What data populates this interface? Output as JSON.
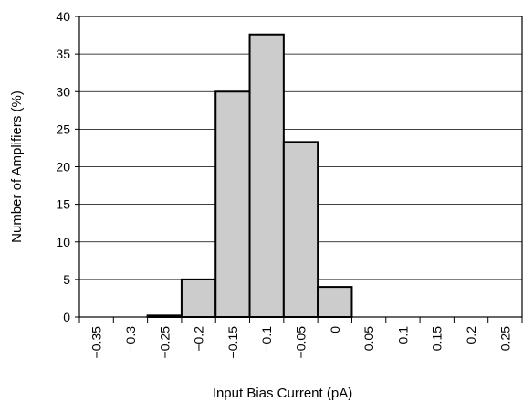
{
  "chart_data": {
    "type": "bar",
    "xlabel": "Input Bias Current (pA)",
    "ylabel": "Number of Amplifiers (%)",
    "ylim": [
      0,
      40
    ],
    "yticks": [
      0,
      5,
      10,
      15,
      20,
      25,
      30,
      35,
      40
    ],
    "xlim": [
      -0.375,
      0.275
    ],
    "xticks": [
      "−0.35",
      "−0.3",
      "−0.25",
      "−0.2",
      "−0.15",
      "−0.1",
      "−0.05",
      "0",
      "0.05",
      "0.1",
      "0.15",
      "0.2",
      "0.25"
    ],
    "xtick_values": [
      -0.35,
      -0.3,
      -0.25,
      -0.2,
      -0.15,
      -0.1,
      -0.05,
      0,
      0.05,
      0.1,
      0.15,
      0.2,
      0.25
    ],
    "bins": [
      {
        "x0": -0.375,
        "x1": -0.325,
        "value": 0
      },
      {
        "x0": -0.325,
        "x1": -0.275,
        "value": 0
      },
      {
        "x0": -0.275,
        "x1": -0.225,
        "value": 0.2
      },
      {
        "x0": -0.225,
        "x1": -0.175,
        "value": 5
      },
      {
        "x0": -0.175,
        "x1": -0.125,
        "value": 30
      },
      {
        "x0": -0.125,
        "x1": -0.075,
        "value": 37.6
      },
      {
        "x0": -0.075,
        "x1": -0.025,
        "value": 23.3
      },
      {
        "x0": -0.025,
        "x1": 0.025,
        "value": 4
      },
      {
        "x0": 0.025,
        "x1": 0.075,
        "value": 0
      },
      {
        "x0": 0.075,
        "x1": 0.125,
        "value": 0
      },
      {
        "x0": 0.125,
        "x1": 0.175,
        "value": 0
      },
      {
        "x0": 0.175,
        "x1": 0.225,
        "value": 0
      },
      {
        "x0": 0.225,
        "x1": 0.275,
        "value": 0
      }
    ],
    "grid": "horizontal",
    "bar_color": "#cccccc",
    "bar_edge_color": "#000000"
  }
}
